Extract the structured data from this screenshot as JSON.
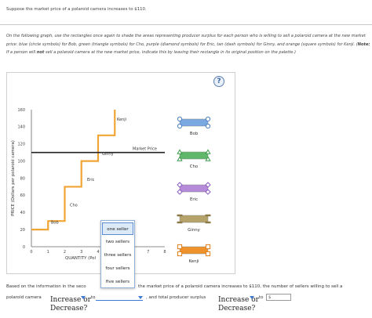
{
  "header": {
    "text": "Suppose the market price of a polaroid camera increases to $110."
  },
  "instructions": {
    "part1": "On the following graph, use the rectangles once again to shade the areas representing producer surplus for each person who is willing to sell a polaroid camera at the new market price: blue (circle symbols) for Bob, green (triangle symbols) for Cho, purple (diamond symbols) for Eric, tan (dash symbols) for Ginny, and orange (square symbols) for Kenji. (",
    "note": "Note:",
    "part2": " If a person will ",
    "not": "not",
    "part3": " sell a polaroid camera at the new market price, indicate this by leaving their rectangle in its original position on the palette.)"
  },
  "help": {
    "label": "?"
  },
  "graph": {
    "y_axis_label": "PRICE (Dollars per polaroid camera)",
    "x_axis_label": "QUANTITY (Pol",
    "y_ticks": [
      "160",
      "140",
      "120",
      "100",
      "80",
      "60",
      "40",
      "20",
      "0"
    ],
    "x_ticks": [
      "0",
      "1",
      "2",
      "3",
      "4",
      "5",
      "6",
      "7",
      "8"
    ],
    "market_price_label": "Market Price",
    "step_labels": [
      "Bob",
      "Cho",
      "Eric",
      "Ginny",
      "Kenji"
    ],
    "palette": [
      {
        "name": "Bob",
        "color": "#7aa8e0",
        "marker": "circle"
      },
      {
        "name": "Cho",
        "color": "#5fb86a",
        "marker": "triangle"
      },
      {
        "name": "Eric",
        "color": "#b48ad9",
        "marker": "diamond"
      },
      {
        "name": "Ginny",
        "color": "#b5a36a",
        "marker": "dash"
      },
      {
        "name": "Kenji",
        "color": "#f0922b",
        "marker": "square"
      }
    ]
  },
  "dropdown": {
    "options": [
      "one seller",
      "two sellers",
      "three sellers",
      "four sellers",
      "five sellers"
    ],
    "selected": "one seller"
  },
  "footer": {
    "sentence1a": "Based on the information in the seco",
    "sentence1b": "the market price of a polaroid camera increases to $110, the number of sellers willing to sell a",
    "sentence2a": "polaroid camera",
    "drop_text": "Increase or Decrease?",
    "drop_line1": "Increase or",
    "drop_line2": "Decrease?",
    "to": "to",
    "total_ps": ", and total producer surplus",
    "dollar": "$"
  }
}
